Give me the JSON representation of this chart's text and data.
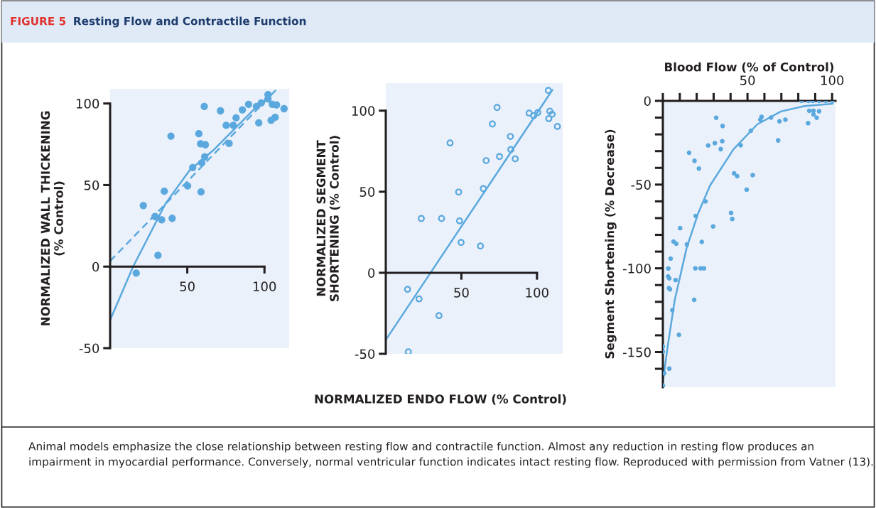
{
  "chart_data": [
    {
      "type": "scatter",
      "title": "Resting Flow and Contractile Function",
      "ylabel": "NORMALIZED WALL THICKENING\n(% Control)",
      "xlim": [
        0,
        116
      ],
      "ylim": [
        -50,
        109
      ],
      "xticks": [
        50,
        100
      ],
      "yticks": [
        -50,
        0,
        50,
        100
      ],
      "grid": false,
      "legend": false,
      "annotations": [
        "FIGURE 5",
        "Animal models emphasize the close relationship between resting flow and contractile function. Almost any reduction in resting flow produces an impairment in myocardial performance. Conversely, normal ventricular function indicates intact resting flow. Reproduced with permission from Vatner (13)."
      ],
      "series": [
        {
          "marker": "circle",
          "color": "#5aa8de",
          "x": [
            16.9,
            21.5,
            29.1,
            33.4,
            31.0,
            35.1,
            40.2,
            39.4,
            50.2,
            53.5,
            58.9,
            57.5,
            58.6,
            61.7,
            61.3,
            59.4,
            61.0,
            71.5,
            75.2,
            77.1,
            79.8,
            81.6,
            85.7,
            89.7,
            94.8,
            96.3,
            97.9,
            102.3,
            102.3,
            105.1,
            107.8,
            104.3,
            106.9,
            112.7
          ],
          "values": [
            -4,
            37.4,
            30.7,
            28.7,
            6.9,
            46.2,
            29.6,
            80.0,
            49.5,
            60.7,
            45.8,
            81.5,
            75.3,
            74.7,
            67.3,
            63.6,
            98.2,
            95.5,
            86.6,
            75.5,
            86.6,
            91.2,
            96.1,
            99.5,
            98.2,
            88.1,
            100.3,
            105.4,
            102.8,
            99.5,
            99.1,
            89.7,
            91.5,
            96.8
          ]
        },
        {
          "type": "line",
          "line_style": "solid",
          "color": "#5aa8de",
          "x": [
            0,
            14.9,
            36,
            51.4,
            66.7,
            82,
            94.3,
            102
          ],
          "values": [
            -32.8,
            0,
            38.8,
            58.9,
            71.2,
            85.8,
            97.4,
            103.5
          ]
        },
        {
          "type": "line",
          "line_style": "dashed",
          "color": "#5aa8de",
          "x": [
            0,
            107.4
          ],
          "values": [
            3.4,
            108.2
          ]
        }
      ]
    },
    {
      "type": "scatter",
      "xlabel": "NORMALIZED ENDO FLOW (% Control)",
      "ylabel": "NORMALIZED SEGMENT\nSHORTENING (% Control)",
      "xlim": [
        0,
        117
      ],
      "ylim": [
        -50,
        117
      ],
      "xticks": [
        50,
        100
      ],
      "yticks": [
        -50,
        0,
        50,
        100
      ],
      "grid": false,
      "legend": false,
      "series": [
        {
          "marker": "open_circle",
          "color": "#5aa8de",
          "x": [
            14.4,
            14.9,
            22.0,
            23.5,
            36.9,
            35.2,
            42.5,
            48.2,
            48.8,
            49.8,
            62.6,
            64.5,
            66.4,
            70.5,
            73.6,
            75.2,
            82.4,
            82.7,
            85.6,
            94.8,
            97.8,
            100.5,
            107.5,
            108.5,
            110.0,
            107.8,
            113.5
          ],
          "values": [
            -10.2,
            -48.8,
            -16.1,
            33.5,
            33.5,
            -26.4,
            80.1,
            49.8,
            32.0,
            18.7,
            16.5,
            51.9,
            69.2,
            91.8,
            102.0,
            71.7,
            84.1,
            76.0,
            70.3,
            98.5,
            96.9,
            98.8,
            112.5,
            99.7,
            97.8,
            95.1,
            90.3
          ]
        },
        {
          "type": "line",
          "line_style": "solid",
          "color": "#5aa8de",
          "x": [
            0,
            110.2
          ],
          "values": [
            -41.4,
            112.8
          ]
        }
      ]
    },
    {
      "type": "scatter",
      "xlabel": "Blood Flow (% of Control)",
      "ylabel": "Segment Shortening (% Decrease)",
      "xlim": [
        0,
        102
      ],
      "ylim": [
        -171,
        0
      ],
      "xticks": [
        {
          "value": 0,
          "label": null
        },
        {
          "value": 10,
          "label": null
        },
        {
          "value": 20,
          "label": null
        },
        {
          "value": 30,
          "label": null
        },
        {
          "value": 40,
          "label": null
        },
        50,
        {
          "value": 60,
          "label": null
        },
        {
          "value": 70,
          "label": null
        },
        {
          "value": 80,
          "label": null
        },
        {
          "value": 90,
          "label": null
        },
        100
      ],
      "yticks": [
        0,
        {
          "value": -10,
          "label": null
        },
        {
          "value": -20,
          "label": null
        },
        {
          "value": -30,
          "label": null
        },
        {
          "value": -40,
          "label": null
        },
        -50,
        {
          "value": -60,
          "label": null
        },
        {
          "value": -70,
          "label": null
        },
        {
          "value": -80,
          "label": null
        },
        {
          "value": -90,
          "label": null
        },
        -100,
        {
          "value": -110,
          "label": null
        },
        {
          "value": -120,
          "label": null
        },
        {
          "value": -130,
          "label": null
        },
        {
          "value": -140,
          "label": null
        },
        -150,
        {
          "value": -160,
          "label": null
        }
      ],
      "grid": false,
      "legend": false,
      "series": [
        {
          "marker": "circle",
          "color": "#5aa8de",
          "x": [
            81.9,
            86.1,
            88.6,
            92.3,
            96.2,
            100.1,
            86.5,
            89.0,
            89.0,
            90.9,
            92.3,
            85.8,
            31.5,
            35.3,
            58.3,
            57.6,
            63.9,
            68.9,
            72.4,
            52.0,
            68.1,
            46.0,
            26.8,
            30.7,
            35.1,
            34.2,
            15.5,
            18.7,
            21.3,
            42.1,
            43.9,
            53.1,
            49.5,
            25.2,
            40.3,
            41.0,
            19.4,
            29.7,
            10.2,
            6.3,
            7.9,
            14.2,
            23.0,
            4.6,
            3.2,
            19.2,
            22.3,
            24.3,
            3.1,
            3.8,
            7.5,
            3.6,
            4.2,
            18.5,
            5.6,
            9.5,
            0,
            0,
            3.8,
            0.8,
            0
          ],
          "values": [
            0,
            0,
            0,
            0,
            0,
            0,
            -5.9,
            -5.9,
            -8.1,
            -10.1,
            -6.2,
            -13.3,
            -10.1,
            -15.0,
            -9.5,
            -11.2,
            -10.0,
            -12.2,
            -11.2,
            -17.8,
            -23.6,
            -26.5,
            -26.6,
            -25.2,
            -24.1,
            -28.8,
            -31.0,
            -35.8,
            -40.4,
            -43.3,
            -45.0,
            -44.3,
            -53.0,
            -60.0,
            -66.9,
            -70.5,
            -68.7,
            -75.0,
            -76.0,
            -84.0,
            -85.3,
            -85.7,
            -84.2,
            -94.2,
            -100.1,
            -100.0,
            -100.0,
            -100.0,
            -104.8,
            -106.0,
            -107.0,
            -111.8,
            -112.5,
            -118.8,
            -125.0,
            -139.7,
            -146.7,
            -149.8,
            -159.9,
            -162.7,
            -170.1
          ]
        },
        {
          "type": "line",
          "line_style": "solid",
          "color": "#5aa8de",
          "x": [
            0,
            2.8,
            7,
            14,
            20.9,
            27.9,
            41.8,
            55.8,
            69.7,
            83.7,
            100.4
          ],
          "values": [
            -168,
            -147,
            -119,
            -88,
            -67,
            -50.5,
            -28.8,
            -14,
            -6.3,
            -3.1,
            -1.7
          ]
        }
      ]
    }
  ]
}
